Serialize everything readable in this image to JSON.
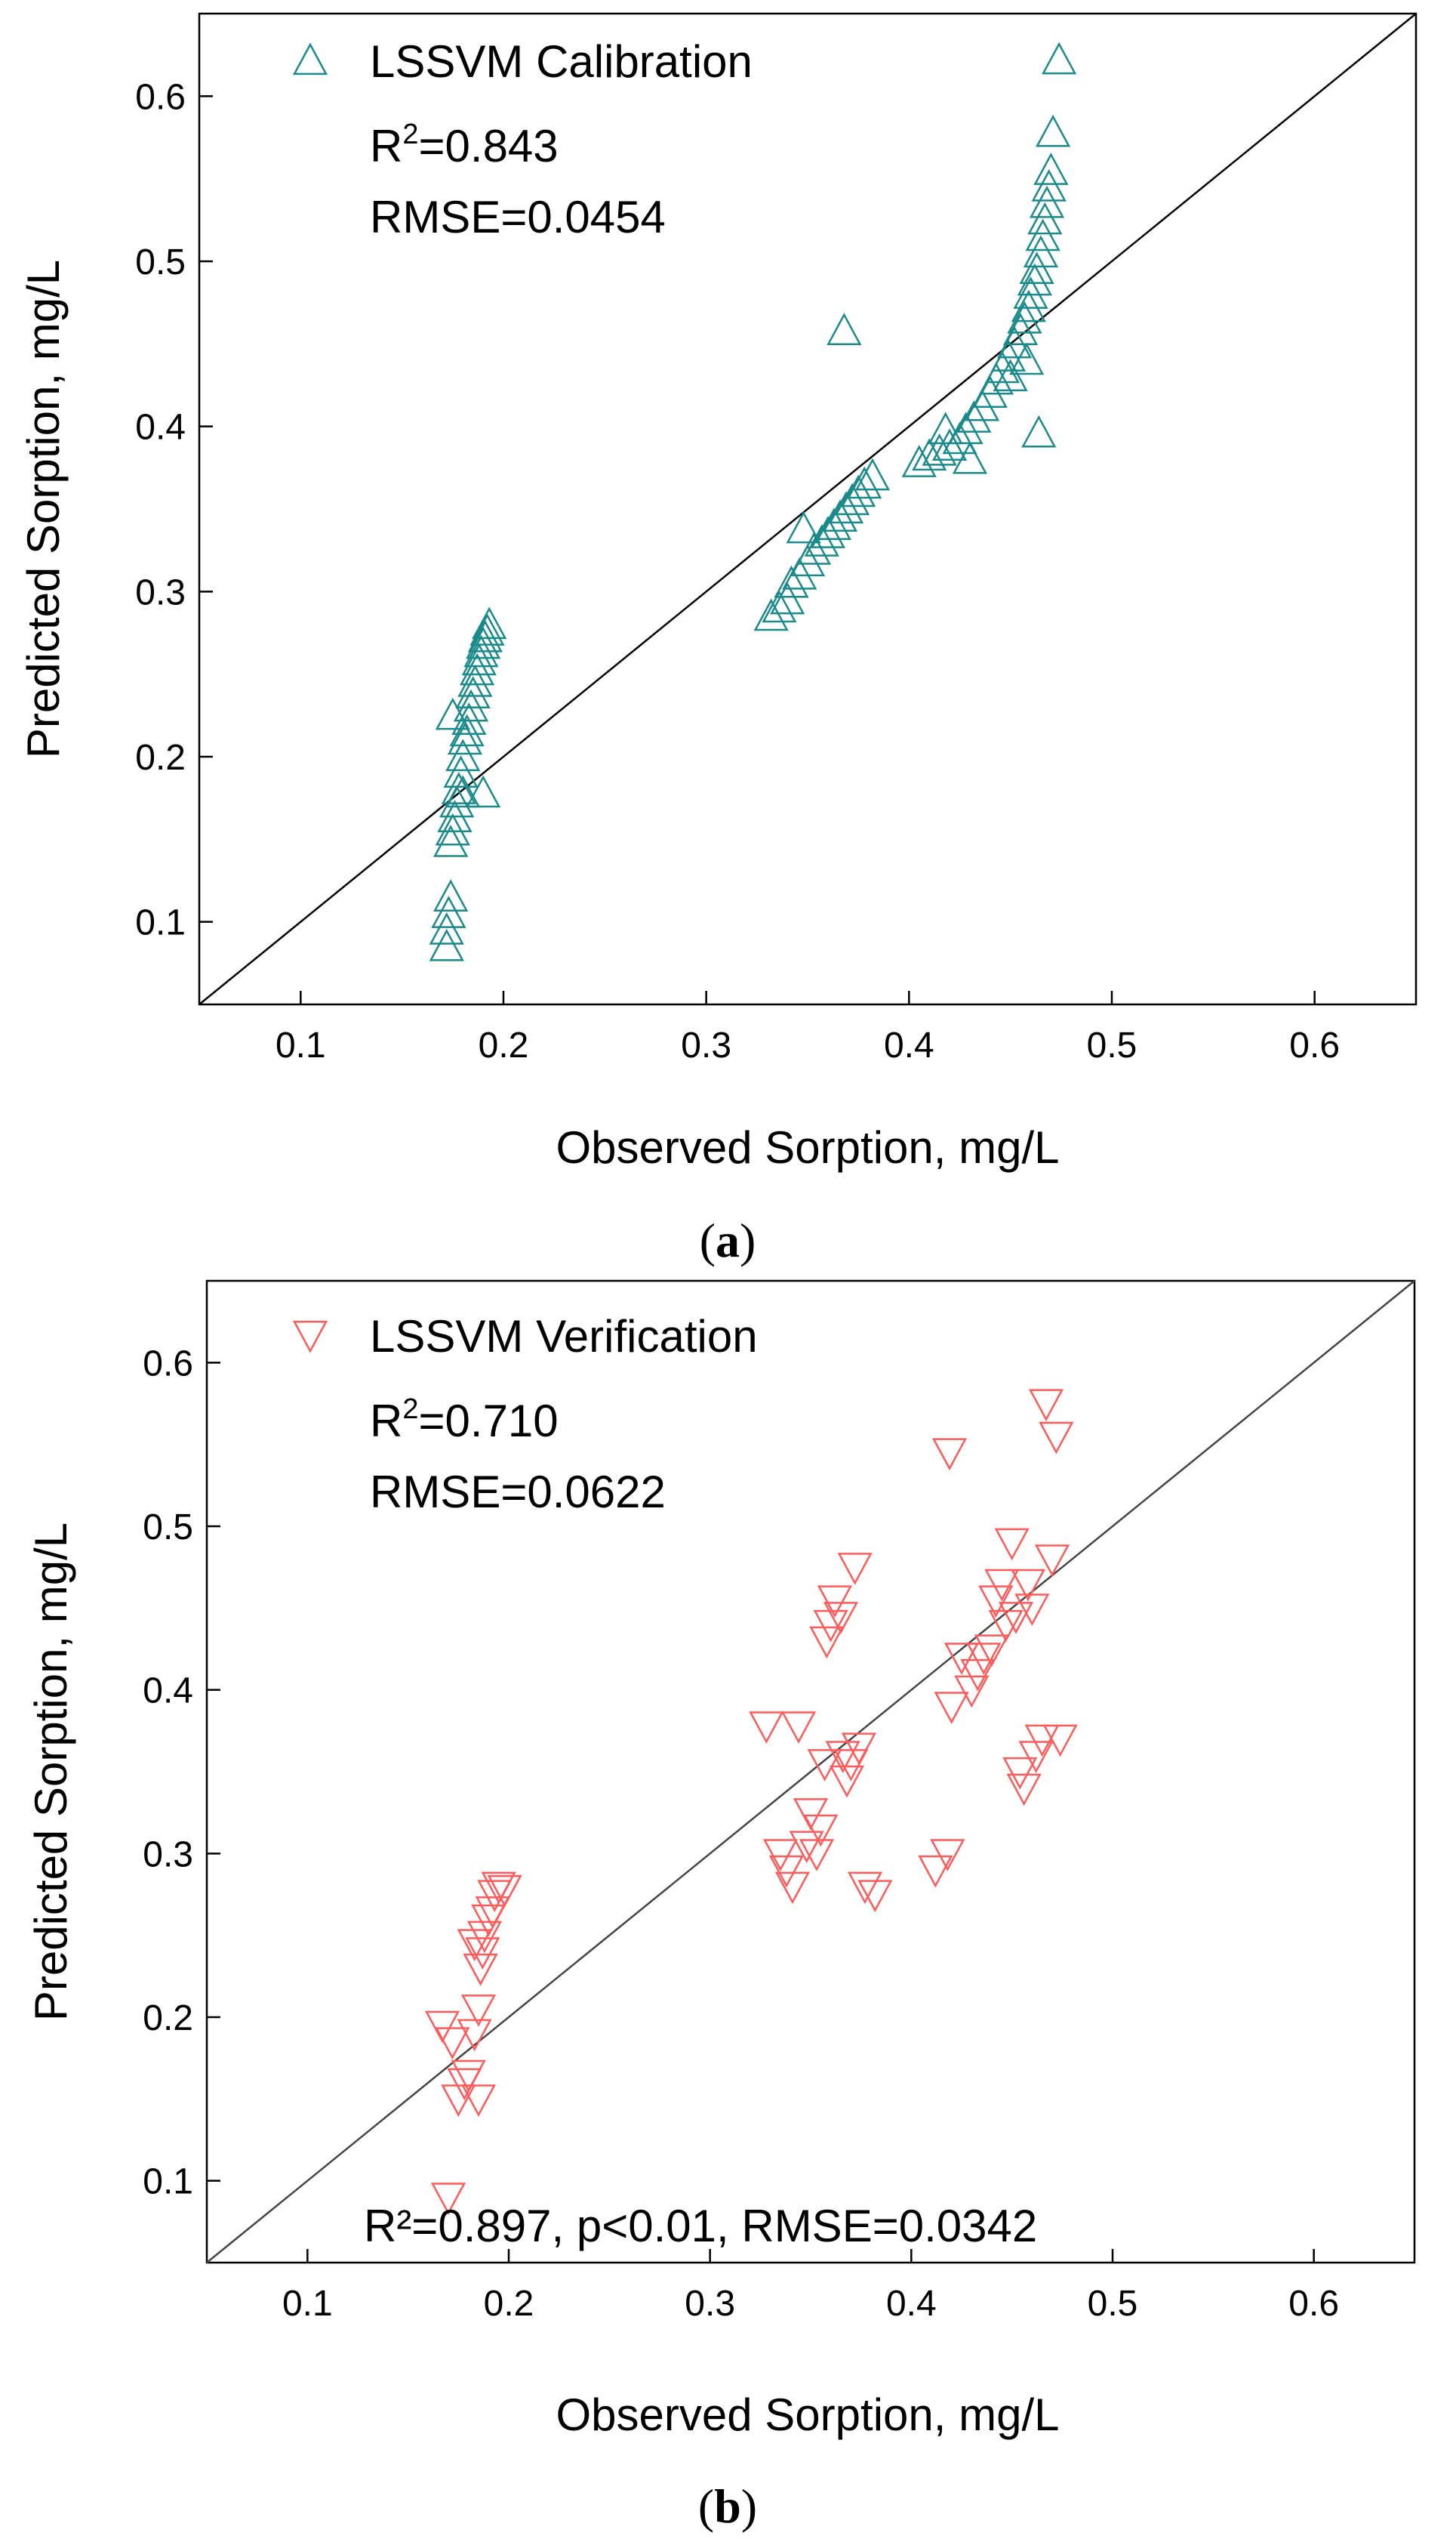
{
  "chart_data": [
    {
      "type": "scatter",
      "panel_label": "a",
      "xlabel": "Observed Sorption, mg/L",
      "ylabel": "Predicted Sorption, mg/L",
      "xlim": [
        0.05,
        0.65
      ],
      "ylim": [
        0.05,
        0.65
      ],
      "xticks": [
        "0.1",
        "0.2",
        "0.3",
        "0.4",
        "0.5",
        "0.6"
      ],
      "yticks": [
        "0.1",
        "0.2",
        "0.3",
        "0.4",
        "0.5",
        "0.6"
      ],
      "legend_position": "top-left",
      "reference_line": "1:1",
      "annotations": {
        "r2_prefix": "R",
        "r2_sup": "2",
        "r2_value": "=0.843",
        "rmse": "RMSE=0.0454"
      },
      "series": [
        {
          "name": "LSSVM Calibration",
          "marker": "triangle-up",
          "color": "#1a8a8a",
          "points": [
            [
              0.172,
              0.085
            ],
            [
              0.172,
              0.095
            ],
            [
              0.173,
              0.105
            ],
            [
              0.174,
              0.115
            ],
            [
              0.174,
              0.148
            ],
            [
              0.175,
              0.155
            ],
            [
              0.176,
              0.163
            ],
            [
              0.177,
              0.172
            ],
            [
              0.178,
              0.18
            ],
            [
              0.179,
              0.19
            ],
            [
              0.18,
              0.2
            ],
            [
              0.181,
              0.21
            ],
            [
              0.182,
              0.215
            ],
            [
              0.183,
              0.222
            ],
            [
              0.184,
              0.23
            ],
            [
              0.185,
              0.238
            ],
            [
              0.186,
              0.245
            ],
            [
              0.187,
              0.252
            ],
            [
              0.188,
              0.258
            ],
            [
              0.189,
              0.263
            ],
            [
              0.19,
              0.268
            ],
            [
              0.191,
              0.272
            ],
            [
              0.192,
              0.276
            ],
            [
              0.193,
              0.28
            ],
            [
              0.175,
              0.225
            ],
            [
              0.18,
              0.178
            ],
            [
              0.19,
              0.178
            ],
            [
              0.332,
              0.285
            ],
            [
              0.336,
              0.29
            ],
            [
              0.34,
              0.295
            ],
            [
              0.342,
              0.305
            ],
            [
              0.346,
              0.31
            ],
            [
              0.35,
              0.318
            ],
            [
              0.353,
              0.325
            ],
            [
              0.357,
              0.33
            ],
            [
              0.36,
              0.335
            ],
            [
              0.363,
              0.34
            ],
            [
              0.366,
              0.345
            ],
            [
              0.369,
              0.35
            ],
            [
              0.372,
              0.355
            ],
            [
              0.375,
              0.36
            ],
            [
              0.378,
              0.365
            ],
            [
              0.382,
              0.37
            ],
            [
              0.348,
              0.338
            ],
            [
              0.368,
              0.458
            ],
            [
              0.405,
              0.378
            ],
            [
              0.41,
              0.382
            ],
            [
              0.415,
              0.385
            ],
            [
              0.42,
              0.388
            ],
            [
              0.425,
              0.392
            ],
            [
              0.428,
              0.398
            ],
            [
              0.432,
              0.405
            ],
            [
              0.436,
              0.412
            ],
            [
              0.44,
              0.42
            ],
            [
              0.443,
              0.428
            ],
            [
              0.446,
              0.435
            ],
            [
              0.449,
              0.442
            ],
            [
              0.452,
              0.45
            ],
            [
              0.455,
              0.458
            ],
            [
              0.457,
              0.465
            ],
            [
              0.459,
              0.472
            ],
            [
              0.46,
              0.48
            ],
            [
              0.462,
              0.488
            ],
            [
              0.463,
              0.495
            ],
            [
              0.465,
              0.505
            ],
            [
              0.466,
              0.515
            ],
            [
              0.467,
              0.525
            ],
            [
              0.468,
              0.535
            ],
            [
              0.469,
              0.545
            ],
            [
              0.47,
              0.555
            ],
            [
              0.471,
              0.578
            ],
            [
              0.474,
              0.622
            ],
            [
              0.464,
              0.396
            ],
            [
              0.418,
              0.398
            ],
            [
              0.43,
              0.38
            ],
            [
              0.45,
              0.43
            ],
            [
              0.458,
              0.44
            ]
          ]
        }
      ]
    },
    {
      "type": "scatter",
      "panel_label": "b",
      "xlabel": "Observed Sorption, mg/L",
      "ylabel": "Predicted Sorption, mg/L",
      "xlim": [
        0.05,
        0.65
      ],
      "ylim": [
        0.05,
        0.65
      ],
      "xticks": [
        "0.1",
        "0.2",
        "0.3",
        "0.4",
        "0.5",
        "0.6"
      ],
      "yticks": [
        "0.1",
        "0.2",
        "0.3",
        "0.4",
        "0.5",
        "0.6"
      ],
      "legend_position": "top-left",
      "reference_line": "1:1",
      "annotations": {
        "r2_prefix": "R",
        "r2_sup": "2",
        "r2_value": "=0.710",
        "rmse": "RMSE=0.0622",
        "bottom_stats": "R²=0.897, p<0.01, RMSE=0.0342"
      },
      "series": [
        {
          "name": "LSSVM Verification",
          "marker": "triangle-down",
          "color": "#ff5a5a",
          "points": [
            [
              0.17,
              0.09
            ],
            [
              0.167,
              0.195
            ],
            [
              0.172,
              0.185
            ],
            [
              0.175,
              0.15
            ],
            [
              0.178,
              0.16
            ],
            [
              0.18,
              0.165
            ],
            [
              0.183,
              0.19
            ],
            [
              0.185,
              0.15
            ],
            [
              0.185,
              0.205
            ],
            [
              0.186,
              0.23
            ],
            [
              0.187,
              0.24
            ],
            [
              0.188,
              0.25
            ],
            [
              0.19,
              0.26
            ],
            [
              0.192,
              0.265
            ],
            [
              0.193,
              0.275
            ],
            [
              0.195,
              0.28
            ],
            [
              0.198,
              0.278
            ],
            [
              0.183,
              0.245
            ],
            [
              0.328,
              0.378
            ],
            [
              0.335,
              0.3
            ],
            [
              0.338,
              0.29
            ],
            [
              0.341,
              0.28
            ],
            [
              0.344,
              0.378
            ],
            [
              0.348,
              0.305
            ],
            [
              0.35,
              0.325
            ],
            [
              0.353,
              0.3
            ],
            [
              0.355,
              0.315
            ],
            [
              0.357,
              0.355
            ],
            [
              0.358,
              0.43
            ],
            [
              0.36,
              0.44
            ],
            [
              0.362,
              0.455
            ],
            [
              0.365,
              0.445
            ],
            [
              0.366,
              0.36
            ],
            [
              0.368,
              0.345
            ],
            [
              0.37,
              0.355
            ],
            [
              0.372,
              0.475
            ],
            [
              0.374,
              0.365
            ],
            [
              0.377,
              0.28
            ],
            [
              0.382,
              0.275
            ],
            [
              0.412,
              0.29
            ],
            [
              0.418,
              0.3
            ],
            [
              0.419,
              0.545
            ],
            [
              0.42,
              0.39
            ],
            [
              0.425,
              0.42
            ],
            [
              0.43,
              0.4
            ],
            [
              0.433,
              0.41
            ],
            [
              0.436,
              0.42
            ],
            [
              0.44,
              0.425
            ],
            [
              0.442,
              0.455
            ],
            [
              0.445,
              0.465
            ],
            [
              0.447,
              0.44
            ],
            [
              0.45,
              0.49
            ],
            [
              0.452,
              0.445
            ],
            [
              0.454,
              0.35
            ],
            [
              0.456,
              0.34
            ],
            [
              0.458,
              0.465
            ],
            [
              0.46,
              0.45
            ],
            [
              0.462,
              0.36
            ],
            [
              0.465,
              0.37
            ],
            [
              0.467,
              0.575
            ],
            [
              0.47,
              0.48
            ],
            [
              0.472,
              0.555
            ],
            [
              0.474,
              0.37
            ]
          ]
        }
      ]
    }
  ]
}
